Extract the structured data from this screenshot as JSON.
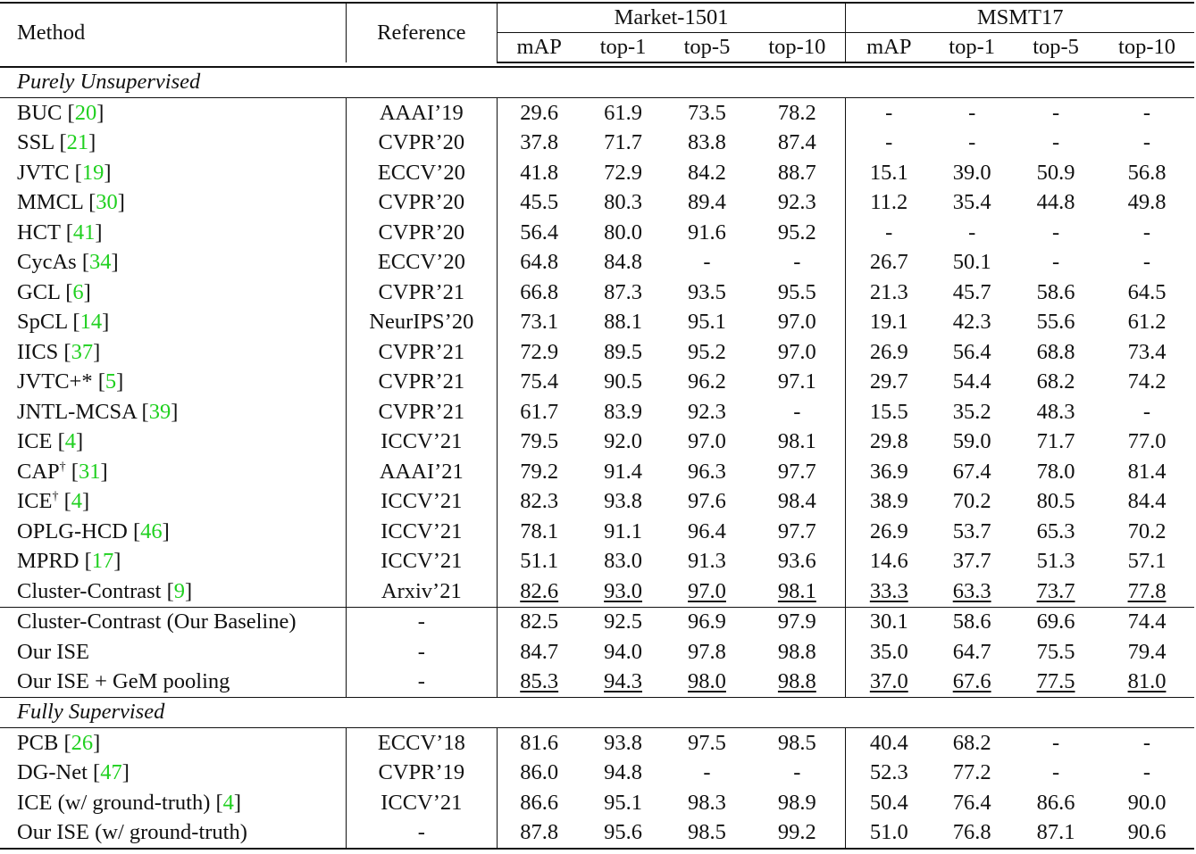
{
  "table": {
    "headers": {
      "method": "Method",
      "reference": "Reference",
      "groups": [
        {
          "label": "Market-1501",
          "columns": [
            "mAP",
            "top-1",
            "top-5",
            "top-10"
          ]
        },
        {
          "label": "MSMT17",
          "columns": [
            "mAP",
            "top-1",
            "top-5",
            "top-10"
          ]
        }
      ]
    },
    "sections": [
      {
        "title": "Purely Unsupervised",
        "groups": [
          {
            "rows": [
              {
                "name": "BUC",
                "sup": "",
                "cite": "20",
                "ref": "AAAI’19",
                "market": [
                  "29.6",
                  "61.9",
                  "73.5",
                  "78.2"
                ],
                "msmt": [
                  "-",
                  "-",
                  "-",
                  "-"
                ],
                "style": "",
                "underline": false
              },
              {
                "name": "SSL",
                "sup": "",
                "cite": "21",
                "ref": "CVPR’20",
                "market": [
                  "37.8",
                  "71.7",
                  "83.8",
                  "87.4"
                ],
                "msmt": [
                  "-",
                  "-",
                  "-",
                  "-"
                ],
                "style": "",
                "underline": false
              },
              {
                "name": "JVTC",
                "sup": "",
                "cite": "19",
                "ref": "ECCV’20",
                "market": [
                  "41.8",
                  "72.9",
                  "84.2",
                  "88.7"
                ],
                "msmt": [
                  "15.1",
                  "39.0",
                  "50.9",
                  "56.8"
                ],
                "style": "",
                "underline": false
              },
              {
                "name": "MMCL",
                "sup": "",
                "cite": "30",
                "ref": "CVPR’20",
                "market": [
                  "45.5",
                  "80.3",
                  "89.4",
                  "92.3"
                ],
                "msmt": [
                  "11.2",
                  "35.4",
                  "44.8",
                  "49.8"
                ],
                "style": "",
                "underline": false
              },
              {
                "name": "HCT",
                "sup": "",
                "cite": "41",
                "ref": "CVPR’20",
                "market": [
                  "56.4",
                  "80.0",
                  "91.6",
                  "95.2"
                ],
                "msmt": [
                  "-",
                  "-",
                  "-",
                  "-"
                ],
                "style": "",
                "underline": false
              },
              {
                "name": "CycAs",
                "sup": "",
                "cite": "34",
                "ref": "ECCV’20",
                "market": [
                  "64.8",
                  "84.8",
                  "-",
                  "-"
                ],
                "msmt": [
                  "26.7",
                  "50.1",
                  "-",
                  "-"
                ],
                "style": "",
                "underline": false
              },
              {
                "name": "GCL",
                "sup": "",
                "cite": "6",
                "ref": "CVPR’21",
                "market": [
                  "66.8",
                  "87.3",
                  "93.5",
                  "95.5"
                ],
                "msmt": [
                  "21.3",
                  "45.7",
                  "58.6",
                  "64.5"
                ],
                "style": "",
                "underline": false
              },
              {
                "name": "SpCL",
                "sup": "",
                "cite": "14",
                "ref": "NeurIPS’20",
                "market": [
                  "73.1",
                  "88.1",
                  "95.1",
                  "97.0"
                ],
                "msmt": [
                  "19.1",
                  "42.3",
                  "55.6",
                  "61.2"
                ],
                "style": "",
                "underline": false
              },
              {
                "name": "IICS",
                "sup": "",
                "cite": "37",
                "ref": "CVPR’21",
                "market": [
                  "72.9",
                  "89.5",
                  "95.2",
                  "97.0"
                ],
                "msmt": [
                  "26.9",
                  "56.4",
                  "68.8",
                  "73.4"
                ],
                "style": "",
                "underline": false
              },
              {
                "name": "JVTC+*",
                "sup": "",
                "cite": "5",
                "ref": "CVPR’21",
                "market": [
                  "75.4",
                  "90.5",
                  "96.2",
                  "97.1"
                ],
                "msmt": [
                  "29.7",
                  "54.4",
                  "68.2",
                  "74.2"
                ],
                "style": "",
                "underline": false
              },
              {
                "name": "JNTL-MCSA",
                "sup": "",
                "cite": "39",
                "ref": "CVPR’21",
                "market": [
                  "61.7",
                  "83.9",
                  "92.3",
                  "-"
                ],
                "msmt": [
                  "15.5",
                  "35.2",
                  "48.3",
                  "-"
                ],
                "style": "",
                "underline": false
              },
              {
                "name": "ICE",
                "sup": "",
                "cite": "4",
                "ref": "ICCV’21",
                "market": [
                  "79.5",
                  "92.0",
                  "97.0",
                  "98.1"
                ],
                "msmt": [
                  "29.8",
                  "59.0",
                  "71.7",
                  "77.0"
                ],
                "style": "",
                "underline": false
              },
              {
                "name": "CAP",
                "sup": "†",
                "cite": "31",
                "ref": "AAAI’21",
                "market": [
                  "79.2",
                  "91.4",
                  "96.3",
                  "97.7"
                ],
                "msmt": [
                  "36.9",
                  "67.4",
                  "78.0",
                  "81.4"
                ],
                "style": "",
                "underline": false
              },
              {
                "name": "ICE",
                "sup": "†",
                "cite": "4",
                "ref": "ICCV’21",
                "market": [
                  "82.3",
                  "93.8",
                  "97.6",
                  "98.4"
                ],
                "msmt": [
                  "38.9",
                  "70.2",
                  "80.5",
                  "84.4"
                ],
                "style": "",
                "underline": false
              },
              {
                "name": "OPLG-HCD",
                "sup": "",
                "cite": "46",
                "ref": "ICCV’21",
                "market": [
                  "78.1",
                  "91.1",
                  "96.4",
                  "97.7"
                ],
                "msmt": [
                  "26.9",
                  "53.7",
                  "65.3",
                  "70.2"
                ],
                "style": "",
                "underline": false
              },
              {
                "name": "MPRD",
                "sup": "",
                "cite": "17",
                "ref": "ICCV’21",
                "market": [
                  "51.1",
                  "83.0",
                  "91.3",
                  "93.6"
                ],
                "msmt": [
                  "14.6",
                  "37.7",
                  "51.3",
                  "57.1"
                ],
                "style": "",
                "underline": false
              },
              {
                "name": "Cluster-Contrast",
                "sup": "",
                "cite": "9",
                "ref": "Arxiv’21",
                "market": [
                  "82.6",
                  "93.0",
                  "97.0",
                  "98.1"
                ],
                "msmt": [
                  "33.3",
                  "63.3",
                  "73.7",
                  "77.8"
                ],
                "style": "",
                "underline": true
              }
            ]
          },
          {
            "rows": [
              {
                "name": "Cluster-Contrast (Our Baseline)",
                "sup": "",
                "cite": "",
                "ref": "-",
                "market": [
                  "82.5",
                  "92.5",
                  "96.9",
                  "97.9"
                ],
                "msmt": [
                  "30.1",
                  "58.6",
                  "69.6",
                  "74.4"
                ],
                "style": "",
                "underline": false
              },
              {
                "name": "Our ISE",
                "sup": "",
                "cite": "",
                "ref": "-",
                "market": [
                  "84.7",
                  "94.0",
                  "97.8",
                  "98.8"
                ],
                "msmt": [
                  "35.0",
                  "64.7",
                  "75.5",
                  "79.4"
                ],
                "style": "bold",
                "underline": false
              },
              {
                "name": "Our ISE + GeM pooling",
                "sup": "",
                "cite": "",
                "ref": "-",
                "market": [
                  "85.3",
                  "94.3",
                  "98.0",
                  "98.8"
                ],
                "msmt": [
                  "37.0",
                  "67.6",
                  "77.5",
                  "81.0"
                ],
                "style": "bold",
                "underline": true
              }
            ]
          }
        ]
      },
      {
        "title": "Fully Supervised",
        "groups": [
          {
            "rows": [
              {
                "name": "PCB",
                "sup": "",
                "cite": "26",
                "ref": "ECCV’18",
                "market": [
                  "81.6",
                  "93.8",
                  "97.5",
                  "98.5"
                ],
                "msmt": [
                  "40.4",
                  "68.2",
                  "-",
                  "-"
                ],
                "style": "",
                "underline": false
              },
              {
                "name": "DG-Net",
                "sup": "",
                "cite": "47",
                "ref": "CVPR’19",
                "market": [
                  "86.0",
                  "94.8",
                  "-",
                  "-"
                ],
                "msmt": [
                  "52.3",
                  "77.2",
                  "-",
                  "-"
                ],
                "style": "",
                "underline": false
              },
              {
                "name": "ICE (w/ ground-truth)",
                "sup": "",
                "cite": "4",
                "ref": "ICCV’21",
                "market": [
                  "86.6",
                  "95.1",
                  "98.3",
                  "98.9"
                ],
                "msmt": [
                  "50.4",
                  "76.4",
                  "86.6",
                  "90.0"
                ],
                "style": "",
                "underline": false
              },
              {
                "name": "Our ISE (w/ ground-truth)",
                "sup": "",
                "cite": "",
                "ref": "-",
                "market": [
                  "87.8",
                  "95.6",
                  "98.5",
                  "99.2"
                ],
                "msmt": [
                  "51.0",
                  "76.8",
                  "87.1",
                  "90.6"
                ],
                "style": "",
                "underline": false
              }
            ]
          }
        ]
      }
    ],
    "colors": {
      "citation": "#1fd01f",
      "text": "#111111",
      "rule": "#111111"
    }
  }
}
